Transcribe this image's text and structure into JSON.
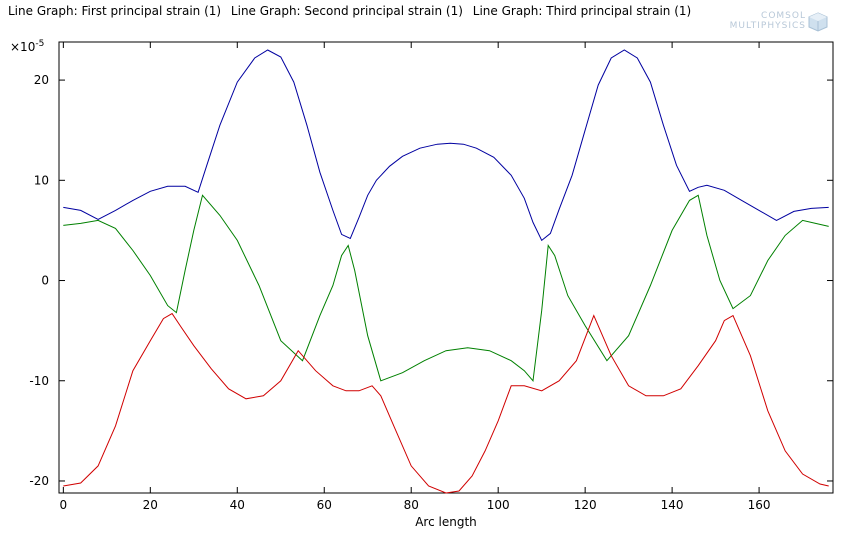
{
  "header": {
    "titles": [
      "Line Graph: First principal strain (1)",
      "Line Graph: Second principal strain (1)",
      "Line Graph: Third principal strain (1)"
    ],
    "logo_line1": "COMSOL",
    "logo_line2": "MULTIPHYSICS"
  },
  "chart_data": {
    "type": "line",
    "xlabel": "Arc length",
    "y_multiplier": "×10",
    "y_exponent": "-5",
    "xlim": [
      -1,
      177
    ],
    "ylim": [
      -21.2,
      23.8
    ],
    "xticks": [
      0,
      20,
      40,
      60,
      80,
      100,
      120,
      140,
      160
    ],
    "yticks": [
      -20,
      -10,
      0,
      10,
      20
    ],
    "grid": false,
    "series": [
      {
        "color": "#0000a0",
        "x": [
          0,
          4,
          8,
          12,
          16,
          20,
          24,
          28,
          31,
          33,
          36,
          40,
          44,
          47,
          50,
          53,
          56,
          59,
          62,
          64,
          66,
          68,
          70,
          72,
          75,
          78,
          82,
          86,
          89,
          92,
          95,
          99,
          103,
          106,
          108,
          110,
          112,
          114,
          117,
          120,
          123,
          126,
          129,
          132,
          135,
          138,
          141,
          144,
          146,
          148,
          152,
          156,
          160,
          164,
          168,
          172,
          176
        ],
        "y": [
          7.3,
          7.0,
          6.1,
          7.0,
          8.0,
          8.9,
          9.4,
          9.4,
          8.8,
          11.5,
          15.5,
          19.8,
          22.2,
          23.0,
          22.3,
          19.8,
          15.5,
          10.8,
          7.0,
          4.6,
          4.2,
          6.3,
          8.5,
          10.0,
          11.4,
          12.4,
          13.2,
          13.6,
          13.7,
          13.6,
          13.2,
          12.3,
          10.5,
          8.2,
          5.8,
          4.0,
          4.7,
          7.1,
          10.5,
          15.0,
          19.5,
          22.2,
          23.0,
          22.2,
          19.8,
          15.5,
          11.5,
          8.9,
          9.3,
          9.5,
          9.0,
          8.0,
          7.0,
          6.0,
          6.9,
          7.2,
          7.3
        ]
      },
      {
        "color": "#008000",
        "x": [
          0,
          4,
          8,
          12,
          16,
          20,
          24,
          26,
          28,
          30,
          32,
          36,
          40,
          45,
          50,
          55,
          59,
          62,
          64,
          65.5,
          67,
          70,
          73,
          78,
          83,
          88,
          93,
          98,
          103,
          106,
          108,
          110,
          111.5,
          113,
          116,
          120,
          125,
          130,
          135,
          140,
          144,
          146,
          148,
          151,
          154,
          158,
          162,
          166,
          170,
          173,
          176
        ],
        "y": [
          5.5,
          5.7,
          6.0,
          5.2,
          3.0,
          0.5,
          -2.5,
          -3.2,
          1.0,
          5.0,
          8.5,
          6.5,
          4.0,
          -0.5,
          -6.0,
          -8.0,
          -3.5,
          -0.5,
          2.5,
          3.5,
          1.0,
          -5.5,
          -10.0,
          -9.2,
          -8.0,
          -7.0,
          -6.7,
          -7.0,
          -8.0,
          -9.0,
          -10.0,
          -3.0,
          3.5,
          2.5,
          -1.5,
          -4.5,
          -8.0,
          -5.5,
          -0.5,
          5.0,
          8.0,
          8.5,
          4.5,
          0.0,
          -2.8,
          -1.5,
          2.0,
          4.5,
          6.0,
          5.7,
          5.4
        ]
      },
      {
        "color": "#d00000",
        "x": [
          0,
          4,
          8,
          12,
          16,
          20,
          23,
          25,
          27,
          30,
          34,
          38,
          42,
          46,
          50,
          54,
          58,
          62,
          65,
          68,
          71,
          73,
          76,
          80,
          84,
          88,
          91,
          94,
          97,
          100,
          103,
          106,
          110,
          114,
          118,
          122,
          126,
          130,
          134,
          138,
          142,
          146,
          150,
          152,
          154,
          158,
          162,
          166,
          170,
          174,
          176
        ],
        "y": [
          -20.5,
          -20.2,
          -18.5,
          -14.5,
          -9.0,
          -6.0,
          -3.8,
          -3.3,
          -4.6,
          -6.5,
          -8.8,
          -10.8,
          -11.8,
          -11.5,
          -10.0,
          -7.0,
          -9.0,
          -10.5,
          -11.0,
          -11.0,
          -10.5,
          -11.5,
          -14.5,
          -18.5,
          -20.5,
          -21.2,
          -21.0,
          -19.5,
          -17.0,
          -14.0,
          -10.5,
          -10.5,
          -11.0,
          -10.0,
          -8.0,
          -3.5,
          -7.5,
          -10.5,
          -11.5,
          -11.5,
          -10.8,
          -8.5,
          -6.0,
          -4.0,
          -3.5,
          -7.5,
          -13.0,
          -17.0,
          -19.3,
          -20.3,
          -20.5
        ]
      }
    ]
  }
}
